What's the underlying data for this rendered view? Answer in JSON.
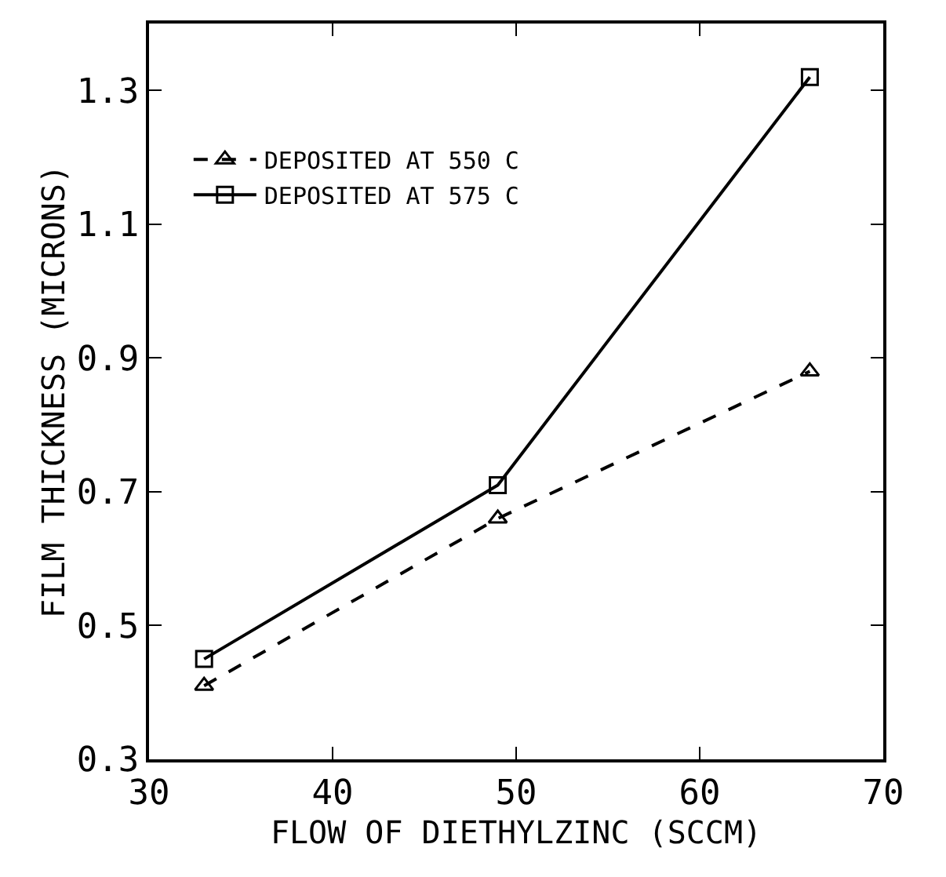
{
  "chart_data": {
    "type": "line",
    "xlabel": "FLOW OF DIETHYLZINC (SCCM)",
    "ylabel": "FILM THICKNESS (MICRONS)",
    "x": [
      33,
      49,
      66
    ],
    "series": [
      {
        "name": "DEPOSITED AT 550 C",
        "color": "#000000",
        "values": [
          0.41,
          0.66,
          0.88
        ],
        "marker": "triangle",
        "line_style": "dashed"
      },
      {
        "name": "DEPOSITED AT 575 C",
        "color": "#000000",
        "values": [
          0.45,
          0.71,
          1.32
        ],
        "marker": "square",
        "line_style": "solid"
      }
    ],
    "xlim": [
      30,
      70
    ],
    "xticks": [
      30,
      40,
      50,
      60,
      70
    ],
    "ylim": [
      0.3,
      1.4
    ],
    "yticks": [
      {
        "value": 0.3,
        "label": "0.3"
      },
      {
        "value": 0.5,
        "label": "0.5"
      },
      {
        "value": 0.7,
        "label": "0.7"
      },
      {
        "value": 0.9,
        "label": "0.9"
      },
      {
        "value": 1.1,
        "label": "1.1"
      },
      {
        "value": 1.3,
        "label": "1.3"
      }
    ],
    "legend": "top left"
  }
}
